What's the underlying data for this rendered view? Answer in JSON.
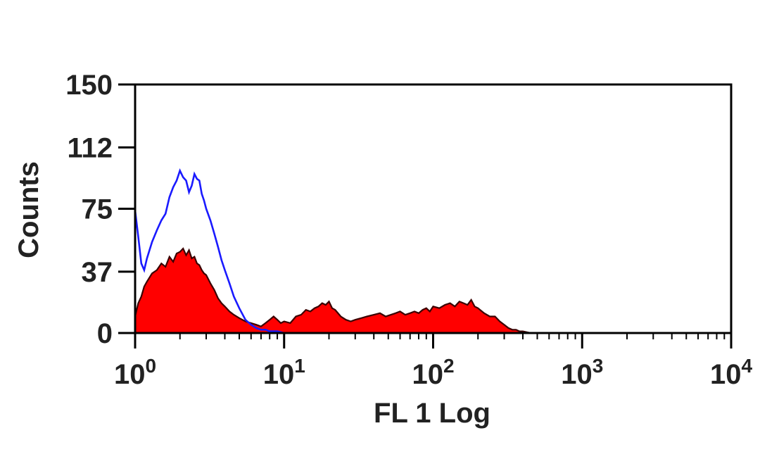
{
  "chart_data": {
    "type": "area",
    "x_scale": "log",
    "xlim": [
      1,
      10000
    ],
    "ylim": [
      0,
      150
    ],
    "grid": false,
    "legend": "none",
    "xlabel": "FL 1 Log",
    "ylabel": "Counts",
    "y_ticks": [
      0,
      37,
      75,
      112,
      150
    ],
    "x_ticks": [
      {
        "value": 1,
        "base": "10",
        "exp": "0"
      },
      {
        "value": 10,
        "base": "10",
        "exp": "1"
      },
      {
        "value": 100,
        "base": "10",
        "exp": "2"
      },
      {
        "value": 1000,
        "base": "10",
        "exp": "3"
      },
      {
        "value": 10000,
        "base": "10",
        "exp": "4"
      }
    ],
    "series": [
      {
        "kind": "filled",
        "color": "#ff0000",
        "edge_color": "#3a0000",
        "x": [
          1.0,
          1.05,
          1.1,
          1.15,
          1.2,
          1.3,
          1.4,
          1.5,
          1.6,
          1.7,
          1.8,
          1.9,
          2.0,
          2.1,
          2.2,
          2.3,
          2.4,
          2.5,
          2.6,
          2.7,
          2.8,
          2.9,
          3.0,
          3.2,
          3.4,
          3.6,
          3.8,
          4.0,
          4.3,
          4.6,
          5.0,
          5.5,
          6.0,
          6.5,
          7.0,
          7.5,
          8.0,
          8.5,
          9.0,
          9.5,
          10,
          11,
          12,
          13,
          14,
          15,
          16,
          17,
          18,
          19,
          20,
          21,
          22,
          24,
          26,
          28,
          30,
          33,
          36,
          40,
          44,
          48,
          52,
          56,
          60,
          65,
          70,
          75,
          80,
          85,
          90,
          95,
          100,
          110,
          120,
          130,
          140,
          150,
          160,
          170,
          180,
          190,
          200,
          220,
          240,
          260,
          280,
          300,
          320,
          340,
          360,
          380,
          400,
          450,
          500,
          1000,
          10000
        ],
        "y": [
          10,
          18,
          22,
          28,
          31,
          36,
          38,
          42,
          40,
          46,
          43,
          48,
          49,
          51,
          47,
          50,
          45,
          46,
          42,
          41,
          38,
          36,
          35,
          30,
          26,
          21,
          18,
          16,
          13,
          11,
          9,
          7,
          6,
          5,
          4,
          6,
          8,
          10,
          8,
          6,
          7,
          6,
          10,
          11,
          14,
          13,
          15,
          16,
          18,
          17,
          19,
          15,
          14,
          10,
          8,
          7,
          8,
          9,
          10,
          11,
          12,
          10,
          11,
          12,
          13,
          11,
          12,
          13,
          12,
          14,
          15,
          13,
          16,
          15,
          17,
          18,
          16,
          19,
          18,
          17,
          20,
          16,
          15,
          12,
          10,
          10,
          7,
          5,
          3,
          2,
          2,
          1,
          1,
          0,
          0,
          0,
          0
        ]
      },
      {
        "kind": "line",
        "color": "#1a1aff",
        "x": [
          1.0,
          1.05,
          1.1,
          1.15,
          1.2,
          1.3,
          1.4,
          1.5,
          1.6,
          1.7,
          1.8,
          1.9,
          2.0,
          2.1,
          2.2,
          2.3,
          2.4,
          2.5,
          2.6,
          2.7,
          2.8,
          2.9,
          3.0,
          3.2,
          3.4,
          3.6,
          3.8,
          4.0,
          4.3,
          4.6,
          5.0,
          5.5,
          6.0,
          6.5,
          7.0,
          7.5,
          8.0,
          9.0,
          10.0,
          11.0,
          12.0
        ],
        "y": [
          74,
          58,
          42,
          38,
          45,
          55,
          62,
          68,
          72,
          82,
          88,
          92,
          98,
          94,
          92,
          85,
          89,
          96,
          93,
          92,
          84,
          80,
          75,
          68,
          60,
          52,
          44,
          38,
          30,
          22,
          15,
          8,
          5,
          3,
          2,
          2,
          1,
          1,
          0,
          0,
          0
        ]
      }
    ]
  }
}
